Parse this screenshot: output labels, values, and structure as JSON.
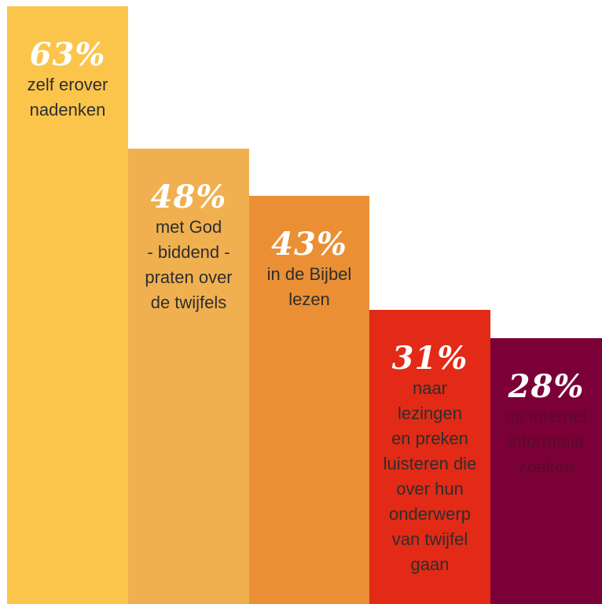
{
  "chart_data": {
    "type": "bar",
    "categories": [
      "zelf erover\nnadenken",
      "met God\n- biddend -\npraten over\nde twijfels",
      "in de Bijbel\nlezen",
      "naar\nlezingen\nen preken\nluisteren die\nover hun\nonderwerp\nvan twijfel\ngaan",
      "op internet\ninformatie\nzoeken"
    ],
    "values": [
      63,
      48,
      43,
      31,
      28
    ],
    "value_labels": [
      "63%",
      "48%",
      "43%",
      "31%",
      "28%"
    ],
    "colors": [
      "#FBC54C",
      "#F0B050",
      "#EA8F33",
      "#E22A16",
      "#7C0038"
    ],
    "label_colors": [
      "#2e2e2e",
      "#2e2e2e",
      "#2e2e2e",
      "#2e2e2e",
      "#5a0a2a"
    ],
    "title": "",
    "xlabel": "",
    "ylabel": "",
    "ylim": [
      0,
      63
    ],
    "grid": false
  }
}
